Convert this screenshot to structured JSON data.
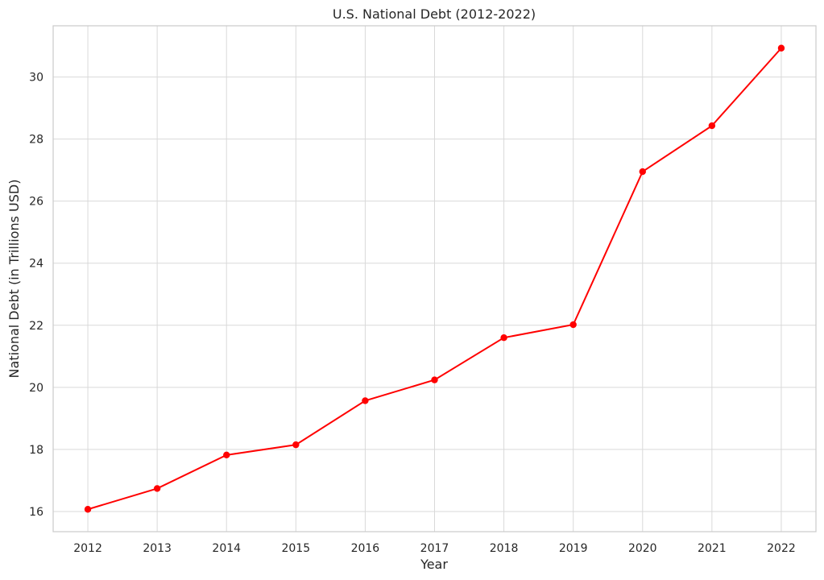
{
  "chart_data": {
    "type": "line",
    "title": "U.S. National Debt (2012-2022)",
    "xlabel": "Year",
    "ylabel": "National Debt (in Trillions USD)",
    "x": [
      2012,
      2013,
      2014,
      2015,
      2016,
      2017,
      2018,
      2019,
      2020,
      2021,
      2022
    ],
    "x_tick_labels": [
      "2012",
      "2013",
      "2014",
      "2015",
      "2016",
      "2017",
      "2018",
      "2019",
      "2020",
      "2021",
      "2022"
    ],
    "series": [
      {
        "values": [
          16.07,
          16.74,
          17.82,
          18.15,
          19.57,
          20.24,
          21.6,
          22.02,
          26.95,
          28.43,
          30.93
        ],
        "color": "#ff0000",
        "marker": "circle"
      }
    ],
    "xlim": [
      2011.5,
      2022.5
    ],
    "ylim": [
      15.35,
      31.65
    ],
    "y_ticks": [
      16,
      18,
      20,
      22,
      24,
      26,
      28,
      30
    ],
    "y_tick_labels": [
      "16",
      "18",
      "20",
      "22",
      "24",
      "26",
      "28",
      "30"
    ],
    "grid": true,
    "legend": "none"
  }
}
